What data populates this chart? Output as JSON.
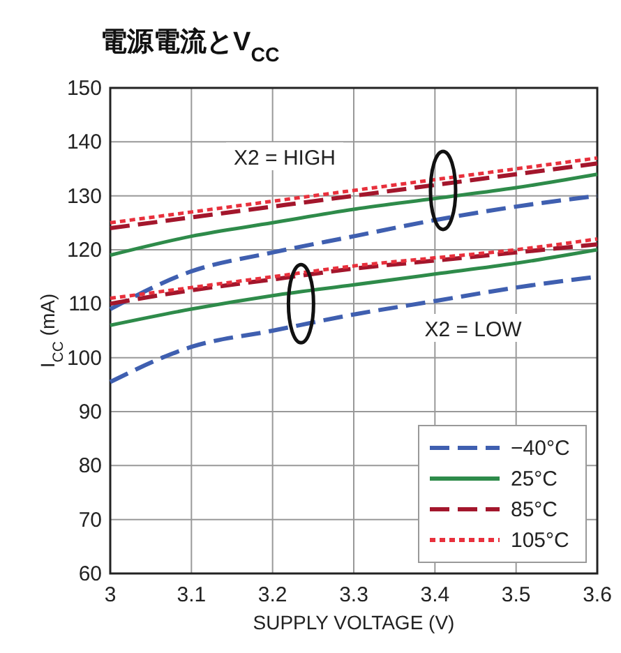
{
  "chart_data": {
    "type": "line",
    "title": "電源電流とV$_{CC}$",
    "xlabel": "SUPPLY VOLTAGE (V)",
    "ylabel": "I$_{CC}$ (mA)",
    "x": [
      3.0,
      3.1,
      3.2,
      3.3,
      3.4,
      3.5,
      3.6
    ],
    "series": [
      {
        "name": "−40°C",
        "color": "#3f5fb0",
        "line_style": "dashed",
        "values": [
          109,
          116,
          119.5,
          122.5,
          125.5,
          128,
          130
        ]
      },
      {
        "name": "25°C",
        "color": "#2e8b4a",
        "line_style": "solid",
        "values": [
          119,
          122.5,
          125,
          127.5,
          129.5,
          131.5,
          134
        ]
      },
      {
        "name": "85°C",
        "color": "#a3162c",
        "line_style": "dashed",
        "values": [
          124,
          126,
          128,
          130,
          132,
          134,
          136
        ]
      },
      {
        "name": "105°C",
        "color": "#e8303c",
        "line_style": "dotted",
        "values": [
          125,
          127,
          129,
          131,
          133,
          135,
          137
        ]
      },
      {
        "color": "#3f5fb0",
        "line_style": "dashed",
        "values": [
          95.5,
          102,
          105,
          108,
          110.5,
          113,
          115
        ]
      },
      {
        "color": "#2e8b4a",
        "line_style": "solid",
        "values": [
          106,
          109,
          111.5,
          113.5,
          115.5,
          117.5,
          120
        ]
      },
      {
        "color": "#a3162c",
        "line_style": "dashed",
        "values": [
          110,
          112.5,
          114.5,
          116.5,
          118,
          119.5,
          121
        ]
      },
      {
        "color": "#e8303c",
        "line_style": "dotted",
        "values": [
          111,
          113,
          115,
          117,
          118.5,
          120,
          122
        ]
      }
    ],
    "xlim": [
      3,
      3.6
    ],
    "xticks": [
      3,
      3.1,
      3.2,
      3.3,
      3.4,
      3.5,
      3.6
    ],
    "ylim": [
      60,
      150
    ],
    "yticks": [
      60,
      70,
      80,
      90,
      100,
      110,
      120,
      130,
      140,
      150
    ],
    "grid": true,
    "legend": "bottom right",
    "annotations": [
      "X2 = HIGH",
      "X2 = LOW"
    ]
  }
}
